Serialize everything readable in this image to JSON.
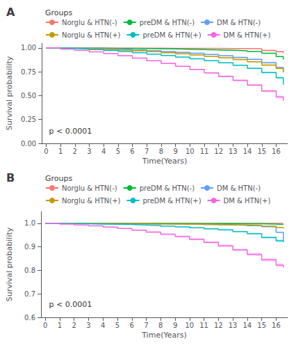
{
  "chart_data": [
    {
      "type": "step",
      "title": "A",
      "xlabel": "Time(Years)",
      "ylabel": "Survival probability",
      "xlim": [
        -0.3,
        16.8
      ],
      "xticks": [
        0,
        1,
        2,
        3,
        4,
        5,
        6,
        7,
        8,
        9,
        10,
        11,
        12,
        13,
        14,
        15,
        16
      ],
      "ylim": [
        0.0,
        1.05
      ],
      "yticks": [
        {
          "value": 0,
          "label": "0.00"
        },
        0.25,
        {
          "value": 0.5,
          "label": "0.50"
        },
        0.75,
        {
          "value": 1,
          "label": "1.00"
        }
      ],
      "annotation": "p < 0.0001",
      "legend_title": "Groups",
      "legend": "top",
      "grid": false,
      "series": [
        {
          "name": "Norglu & HTN(-)",
          "color": "#F8766D",
          "x": [
            0,
            1,
            2,
            3,
            4,
            5,
            6,
            7,
            8,
            9,
            10,
            11,
            12,
            13,
            14,
            15,
            16,
            16.5
          ],
          "values": [
            1.0,
            0.9995,
            0.999,
            0.9985,
            0.998,
            0.9975,
            0.997,
            0.9965,
            0.996,
            0.9955,
            0.995,
            0.9945,
            0.994,
            0.993,
            0.991,
            0.974,
            0.96,
            0.945
          ],
          "ci_upper": [
            1.0,
            1.0,
            0.9998,
            0.9996,
            0.9994,
            0.9992,
            0.999,
            0.9988,
            0.9985,
            0.9982,
            0.9978,
            0.9974,
            0.997,
            0.9965,
            0.994,
            0.98,
            0.968,
            0.955
          ],
          "ci_lower": [
            1.0,
            0.999,
            0.998,
            0.997,
            0.996,
            0.995,
            0.994,
            0.994,
            0.993,
            0.992,
            0.991,
            0.99,
            0.989,
            0.988,
            0.986,
            0.967,
            0.95,
            0.934
          ]
        },
        {
          "name": "preDM & HTN(-)",
          "color": "#00BA38",
          "x": [
            0,
            1,
            2,
            3,
            4,
            5,
            6,
            7,
            8,
            9,
            10,
            11,
            12,
            13,
            14,
            15,
            16,
            16.5
          ],
          "values": [
            1.0,
            0.999,
            0.998,
            0.997,
            0.996,
            0.995,
            0.993,
            0.991,
            0.989,
            0.986,
            0.983,
            0.979,
            0.975,
            0.97,
            0.962,
            0.944,
            0.91,
            0.878
          ],
          "ci_upper": [
            1.0,
            0.9995,
            0.999,
            0.998,
            0.997,
            0.996,
            0.995,
            0.993,
            0.991,
            0.988,
            0.986,
            0.982,
            0.978,
            0.973,
            0.966,
            0.949,
            0.916,
            0.886
          ],
          "ci_lower": [
            1.0,
            0.9985,
            0.997,
            0.996,
            0.995,
            0.994,
            0.991,
            0.989,
            0.987,
            0.984,
            0.98,
            0.976,
            0.972,
            0.967,
            0.958,
            0.939,
            0.904,
            0.87
          ]
        },
        {
          "name": "DM & HTN(-)",
          "color": "#619CFF",
          "x": [
            0,
            1,
            2,
            3,
            4,
            5,
            6,
            7,
            8,
            9,
            10,
            11,
            12,
            13,
            14,
            15,
            16,
            16.5
          ],
          "values": [
            1.0,
            0.998,
            0.996,
            0.993,
            0.989,
            0.984,
            0.978,
            0.971,
            0.963,
            0.954,
            0.944,
            0.932,
            0.918,
            0.901,
            0.88,
            0.846,
            0.795,
            0.745
          ],
          "ci_upper": [
            1.0,
            0.999,
            0.997,
            0.995,
            0.991,
            0.987,
            0.981,
            0.975,
            0.967,
            0.959,
            0.949,
            0.938,
            0.925,
            0.908,
            0.888,
            0.855,
            0.806,
            0.758
          ],
          "ci_lower": [
            1.0,
            0.997,
            0.995,
            0.991,
            0.987,
            0.981,
            0.975,
            0.967,
            0.959,
            0.949,
            0.939,
            0.926,
            0.911,
            0.894,
            0.872,
            0.837,
            0.784,
            0.732
          ]
        },
        {
          "name": "Norglu & HTN(+)",
          "color": "#C49A00",
          "x": [
            0,
            1,
            2,
            3,
            4,
            5,
            6,
            7,
            8,
            9,
            10,
            11,
            12,
            13,
            14,
            15,
            16,
            16.5
          ],
          "values": [
            1.0,
            0.997,
            0.994,
            0.99,
            0.984,
            0.977,
            0.97,
            0.96,
            0.95,
            0.938,
            0.926,
            0.912,
            0.896,
            0.878,
            0.855,
            0.82,
            0.785,
            0.75
          ],
          "ci_upper": [
            1.0,
            0.998,
            0.996,
            0.993,
            0.987,
            0.981,
            0.974,
            0.965,
            0.955,
            0.944,
            0.932,
            0.919,
            0.904,
            0.887,
            0.864,
            0.83,
            0.795,
            0.762
          ],
          "ci_lower": [
            1.0,
            0.996,
            0.992,
            0.987,
            0.981,
            0.973,
            0.966,
            0.955,
            0.945,
            0.932,
            0.92,
            0.906,
            0.888,
            0.87,
            0.845,
            0.81,
            0.775,
            0.738
          ]
        },
        {
          "name": "preDM & HTN(+)",
          "color": "#00BFC4",
          "x": [
            0,
            1,
            2,
            3,
            4,
            5,
            6,
            7,
            8,
            9,
            10,
            11,
            12,
            13,
            14,
            15,
            16,
            16.5
          ],
          "values": [
            1.0,
            0.995,
            0.99,
            0.983,
            0.973,
            0.963,
            0.95,
            0.936,
            0.921,
            0.904,
            0.886,
            0.866,
            0.844,
            0.818,
            0.786,
            0.742,
            0.688,
            0.615
          ],
          "ci_upper": [
            1.0,
            0.996,
            0.991,
            0.985,
            0.975,
            0.966,
            0.953,
            0.939,
            0.925,
            0.908,
            0.891,
            0.872,
            0.85,
            0.825,
            0.794,
            0.751,
            0.698,
            0.628
          ],
          "ci_lower": [
            1.0,
            0.994,
            0.989,
            0.981,
            0.971,
            0.96,
            0.947,
            0.933,
            0.917,
            0.9,
            0.881,
            0.86,
            0.838,
            0.811,
            0.778,
            0.733,
            0.678,
            0.602
          ]
        },
        {
          "name": "DM & HTN(+)",
          "color": "#F564E3",
          "x": [
            0,
            1,
            2,
            3,
            4,
            5,
            6,
            7,
            8,
            9,
            10,
            11,
            12,
            13,
            14,
            15,
            16,
            16.5
          ],
          "values": [
            1.0,
            0.988,
            0.975,
            0.959,
            0.94,
            0.918,
            0.893,
            0.866,
            0.838,
            0.807,
            0.774,
            0.739,
            0.702,
            0.66,
            0.61,
            0.548,
            0.486,
            0.445
          ],
          "ci_upper": [
            1.0,
            0.99,
            0.977,
            0.962,
            0.943,
            0.922,
            0.898,
            0.871,
            0.844,
            0.814,
            0.782,
            0.748,
            0.712,
            0.671,
            0.622,
            0.561,
            0.501,
            0.462
          ],
          "ci_lower": [
            1.0,
            0.986,
            0.973,
            0.956,
            0.937,
            0.914,
            0.888,
            0.861,
            0.832,
            0.8,
            0.766,
            0.73,
            0.692,
            0.649,
            0.598,
            0.535,
            0.471,
            0.428
          ]
        }
      ]
    },
    {
      "type": "step",
      "title": "B",
      "xlabel": "Time(Years)",
      "ylabel": "Survival probability",
      "xlim": [
        -0.3,
        16.8
      ],
      "xticks": [
        0,
        1,
        2,
        3,
        4,
        5,
        6,
        7,
        8,
        9,
        10,
        11,
        12,
        13,
        14,
        15,
        16
      ],
      "ylim": [
        0.6,
        1.05
      ],
      "yticks": [
        0.6,
        0.7,
        0.8,
        0.9,
        {
          "value": 1,
          "label": "1.0"
        }
      ],
      "annotation": "p < 0.0001",
      "legend_title": "Groups",
      "legend": "top",
      "grid": false,
      "series": [
        {
          "name": "Norglu & HTN(-)",
          "color": "#F8766D",
          "x": [
            0,
            1,
            2,
            3,
            4,
            5,
            6,
            7,
            8,
            9,
            10,
            11,
            12,
            13,
            14,
            15,
            16,
            16.5
          ],
          "values": [
            1.0,
            1.0,
            1.0,
            1.0,
            1.0,
            1.0,
            1.0,
            1.0,
            1.0,
            1.0,
            1.0,
            1.0,
            1.0,
            1.0,
            0.9998,
            0.9996,
            0.9994,
            0.9992
          ],
          "ci_upper": [
            1.0,
            1.0,
            1.0,
            1.0,
            1.0,
            1.0,
            1.0,
            1.0,
            1.0,
            1.0,
            1.0,
            1.0,
            1.0,
            1.0,
            1.0,
            1.0,
            1.0,
            1.0
          ],
          "ci_lower": [
            1.0,
            1.0,
            0.9998,
            0.9996,
            0.9994,
            0.9992,
            0.999,
            0.9988,
            0.9986,
            0.9984,
            0.9982,
            0.998,
            0.9978,
            0.9976,
            0.9974,
            0.997,
            0.9965,
            0.996
          ]
        },
        {
          "name": "preDM & HTN(-)",
          "color": "#00BA38",
          "x": [
            0,
            1,
            2,
            3,
            4,
            5,
            6,
            7,
            8,
            9,
            10,
            11,
            12,
            13,
            14,
            15,
            16,
            16.5
          ],
          "values": [
            1.0,
            1.0,
            1.0,
            1.0,
            1.0,
            0.9999,
            0.9998,
            0.9997,
            0.9996,
            0.9994,
            0.9992,
            0.999,
            0.9988,
            0.9985,
            0.998,
            0.9968,
            0.9952,
            0.9938
          ],
          "ci_upper": [
            1.0,
            1.0,
            1.0,
            1.0,
            1.0,
            1.0,
            1.0,
            0.9999,
            0.9998,
            0.9997,
            0.9995,
            0.9993,
            0.9991,
            0.9989,
            0.9984,
            0.9974,
            0.996,
            0.9948
          ],
          "ci_lower": [
            1.0,
            1.0,
            1.0,
            1.0,
            0.9999,
            0.9998,
            0.9996,
            0.9995,
            0.9994,
            0.9991,
            0.9989,
            0.9987,
            0.9985,
            0.9981,
            0.9976,
            0.9962,
            0.9944,
            0.9928
          ]
        },
        {
          "name": "DM & HTN(-)",
          "color": "#619CFF",
          "x": [
            0,
            1,
            2,
            3,
            4,
            5,
            6,
            7,
            8,
            9,
            10,
            11,
            12,
            13,
            14,
            15,
            16,
            16.5
          ],
          "values": [
            1.0,
            0.9998,
            0.9996,
            0.9993,
            0.999,
            0.9986,
            0.9982,
            0.9977,
            0.9971,
            0.9964,
            0.9956,
            0.9947,
            0.9934,
            0.9918,
            0.9897,
            0.9858,
            0.962,
            0.925
          ],
          "ci_upper": [
            1.0,
            0.9999,
            0.9998,
            0.9995,
            0.9992,
            0.9989,
            0.9985,
            0.9981,
            0.9976,
            0.9969,
            0.9962,
            0.9954,
            0.9942,
            0.9927,
            0.9907,
            0.987,
            0.964,
            0.928
          ],
          "ci_lower": [
            1.0,
            0.9997,
            0.9994,
            0.9991,
            0.9988,
            0.9983,
            0.9979,
            0.9973,
            0.9966,
            0.9959,
            0.995,
            0.994,
            0.9926,
            0.9909,
            0.9887,
            0.9846,
            0.96,
            0.922
          ]
        },
        {
          "name": "Norglu & HTN(+)",
          "color": "#C49A00",
          "x": [
            0,
            1,
            2,
            3,
            4,
            5,
            6,
            7,
            8,
            9,
            10,
            11,
            12,
            13,
            14,
            15,
            16,
            16.5
          ],
          "values": [
            1.0,
            0.9998,
            0.9995,
            0.9992,
            0.9988,
            0.9984,
            0.998,
            0.9975,
            0.997,
            0.9964,
            0.9958,
            0.995,
            0.994,
            0.9928,
            0.9912,
            0.9878,
            0.983,
            0.978
          ],
          "ci_upper": [
            1.0,
            0.9999,
            0.9997,
            0.9994,
            0.9991,
            0.9987,
            0.9983,
            0.9979,
            0.9974,
            0.9969,
            0.9963,
            0.9956,
            0.9946,
            0.9935,
            0.992,
            0.9888,
            0.9842,
            0.9794
          ],
          "ci_lower": [
            1.0,
            0.9997,
            0.9993,
            0.999,
            0.9985,
            0.9981,
            0.9977,
            0.9971,
            0.9966,
            0.9959,
            0.9953,
            0.9944,
            0.9934,
            0.9921,
            0.9904,
            0.9868,
            0.9818,
            0.9766
          ]
        },
        {
          "name": "preDM & HTN(+)",
          "color": "#00BFC4",
          "x": [
            0,
            1,
            2,
            3,
            4,
            5,
            6,
            7,
            8,
            9,
            10,
            11,
            12,
            13,
            14,
            15,
            16,
            16.5
          ],
          "values": [
            1.0,
            0.999,
            0.998,
            0.997,
            0.996,
            0.995,
            0.993,
            0.991,
            0.988,
            0.985,
            0.981,
            0.977,
            0.972,
            0.965,
            0.956,
            0.94,
            0.926,
            0.92
          ],
          "ci_upper": [
            1.0,
            0.9995,
            0.999,
            0.998,
            0.997,
            0.996,
            0.994,
            0.993,
            0.99,
            0.987,
            0.983,
            0.98,
            0.975,
            0.968,
            0.96,
            0.945,
            0.932,
            0.927
          ],
          "ci_lower": [
            1.0,
            0.9985,
            0.997,
            0.996,
            0.995,
            0.994,
            0.992,
            0.989,
            0.986,
            0.983,
            0.979,
            0.974,
            0.969,
            0.962,
            0.952,
            0.935,
            0.92,
            0.913
          ]
        },
        {
          "name": "DM & HTN(+)",
          "color": "#F564E3",
          "x": [
            0,
            1,
            2,
            3,
            4,
            5,
            6,
            7,
            8,
            9,
            10,
            11,
            12,
            13,
            14,
            15,
            16,
            16.5
          ],
          "values": [
            1.0,
            0.997,
            0.993,
            0.989,
            0.984,
            0.978,
            0.971,
            0.963,
            0.954,
            0.944,
            0.932,
            0.919,
            0.904,
            0.887,
            0.868,
            0.845,
            0.822,
            0.812
          ],
          "ci_upper": [
            1.0,
            0.998,
            0.994,
            0.991,
            0.986,
            0.98,
            0.974,
            0.966,
            0.957,
            0.948,
            0.937,
            0.924,
            0.91,
            0.893,
            0.875,
            0.853,
            0.831,
            0.822
          ],
          "ci_lower": [
            1.0,
            0.996,
            0.992,
            0.987,
            0.982,
            0.976,
            0.968,
            0.96,
            0.951,
            0.94,
            0.927,
            0.914,
            0.898,
            0.881,
            0.861,
            0.837,
            0.813,
            0.802
          ]
        }
      ]
    }
  ]
}
